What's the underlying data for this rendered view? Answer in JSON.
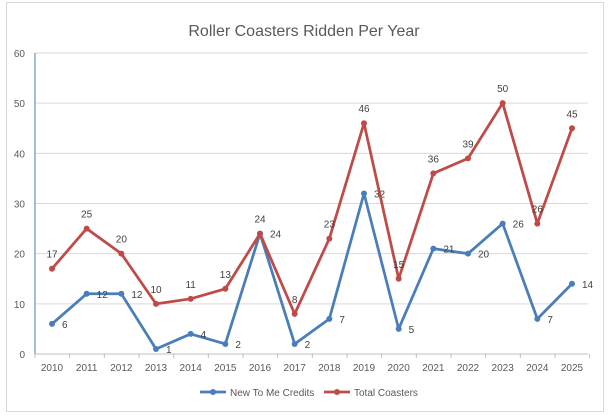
{
  "chart_data": {
    "type": "line",
    "title": "Roller Coasters Ridden Per Year",
    "categories": [
      "2010",
      "2011",
      "2012",
      "2013",
      "2014",
      "2015",
      "2016",
      "2017",
      "2018",
      "2019",
      "2020",
      "2021",
      "2022",
      "2023",
      "2024",
      "2025"
    ],
    "series": [
      {
        "name": "New To Me Credits",
        "color": "#4a7ebb",
        "values": [
          6,
          12,
          12,
          1,
          4,
          2,
          24,
          2,
          7,
          32,
          5,
          21,
          20,
          26,
          7,
          14
        ]
      },
      {
        "name": "Total Coasters",
        "color": "#be4b48",
        "values": [
          17,
          25,
          20,
          10,
          11,
          13,
          24,
          8,
          23,
          46,
          15,
          36,
          39,
          50,
          26,
          45
        ]
      }
    ],
    "ylim": [
      0,
      60
    ],
    "yticks": [
      0,
      10,
      20,
      30,
      40,
      50,
      60
    ],
    "grid": true,
    "legend": "bottom",
    "data_labels": true
  }
}
